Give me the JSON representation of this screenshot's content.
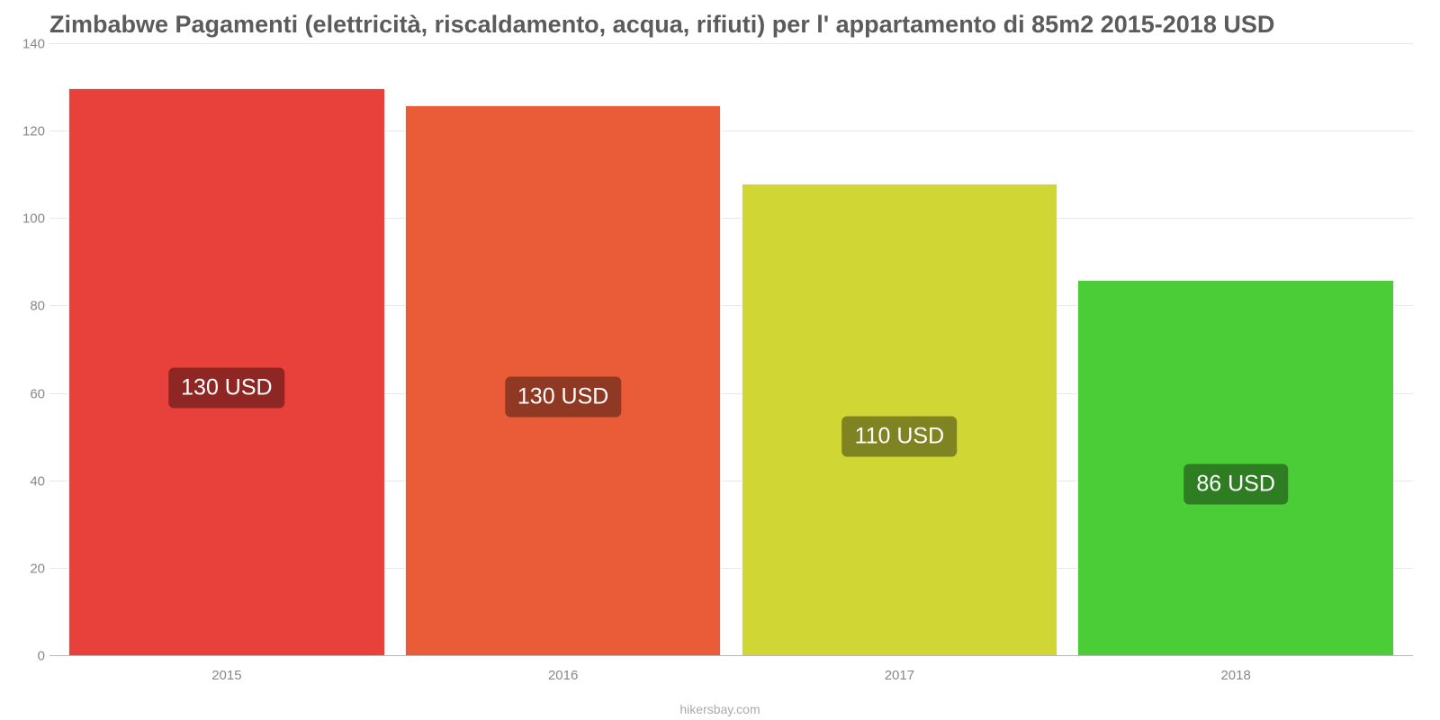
{
  "chart": {
    "type": "bar",
    "title": "Zimbabwe Pagamenti (elettricità, riscaldamento, acqua, rifiuti) per l' appartamento di 85m2 2015-2018 USD",
    "title_color": "#5b5b5b",
    "title_fontsize": 27,
    "attribution": "hikersbay.com",
    "attribution_color": "#aaaaaa",
    "background_color": "#ffffff",
    "grid_color": "#e8e8e8",
    "baseline_color": "#b8b8b8",
    "axis_label_color": "#888888",
    "axis_label_fontsize": 15,
    "ylim": [
      0,
      140
    ],
    "yticks": [
      0,
      20,
      40,
      60,
      80,
      100,
      120,
      140
    ],
    "bar_width_ratio": 0.94,
    "categories": [
      "2015",
      "2016",
      "2017",
      "2018"
    ],
    "series": [
      {
        "raw_value": 130,
        "label": "130 USD",
        "bar_color": "#e8403a",
        "badge_bg": "#8e2723"
      },
      {
        "raw_value": 126,
        "label": "130 USD",
        "bar_color": "#ea5c38",
        "badge_bg": "#8f3823"
      },
      {
        "raw_value": 108,
        "label": "110 USD",
        "bar_color": "#d0d735",
        "badge_bg": "#7f8321"
      },
      {
        "raw_value": 86,
        "label": "86 USD",
        "bar_color": "#4bcd37",
        "badge_bg": "#2f7d23"
      }
    ],
    "value_label_fontsize": 25,
    "value_label_color": "#ffffff"
  }
}
